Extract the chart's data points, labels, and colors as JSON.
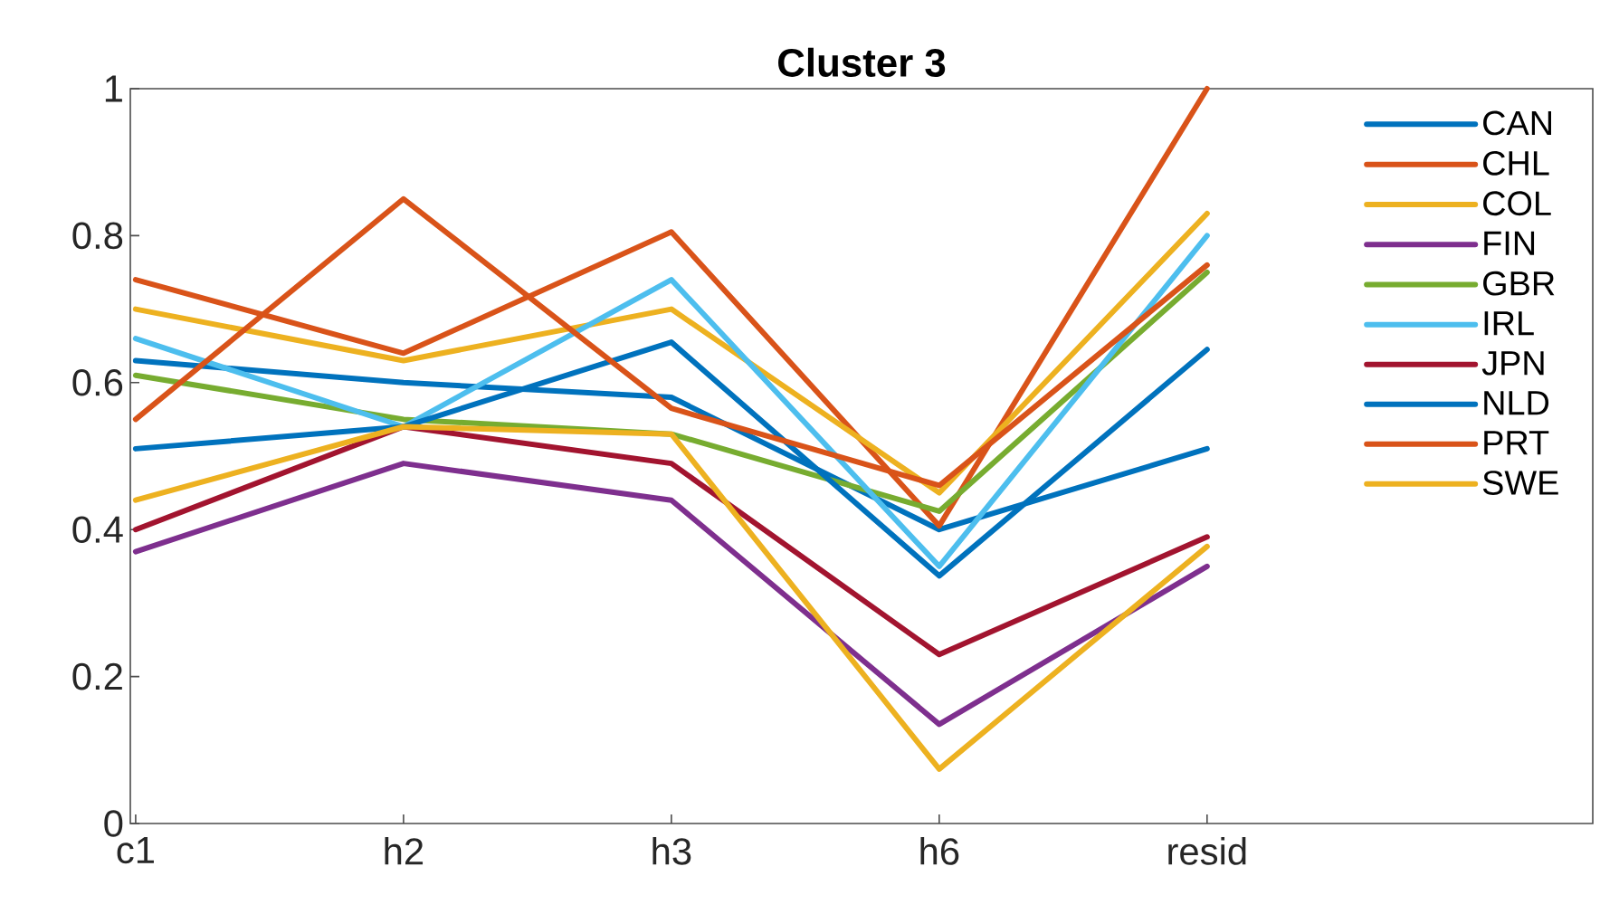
{
  "chart_data": {
    "type": "line",
    "title": "Cluster 3",
    "categories": [
      "c1",
      "h2",
      "h3",
      "h6",
      "resid"
    ],
    "ylim": [
      0,
      1
    ],
    "yticks": [
      0,
      0.2,
      0.4,
      0.6,
      0.8,
      1
    ],
    "grid": false,
    "legend": "top right",
    "marker": "none",
    "line_style": "solid",
    "series": [
      {
        "name": "CAN",
        "color": "#0072bd",
        "values": [
          0.63,
          0.6,
          0.58,
          0.4,
          0.51
        ]
      },
      {
        "name": "CHL",
        "color": "#d95319",
        "values": [
          0.74,
          0.64,
          0.805,
          0.405,
          1.0
        ]
      },
      {
        "name": "COL",
        "color": "#edb120",
        "values": [
          0.7,
          0.63,
          0.7,
          0.45,
          0.83
        ]
      },
      {
        "name": "FIN",
        "color": "#7e2f8e",
        "values": [
          0.37,
          0.49,
          0.44,
          0.135,
          0.35
        ]
      },
      {
        "name": "GBR",
        "color": "#77ac30",
        "values": [
          0.61,
          0.55,
          0.53,
          0.425,
          0.75
        ]
      },
      {
        "name": "IRL",
        "color": "#4dbeee",
        "values": [
          0.66,
          0.54,
          0.74,
          0.35,
          0.8
        ]
      },
      {
        "name": "JPN",
        "color": "#a2142f",
        "values": [
          0.4,
          0.54,
          0.49,
          0.23,
          0.39
        ]
      },
      {
        "name": "NLD",
        "color": "#0072bd",
        "values": [
          0.51,
          0.54,
          0.655,
          0.337,
          0.645
        ]
      },
      {
        "name": "PRT",
        "color": "#d95319",
        "values": [
          0.55,
          0.85,
          0.565,
          0.46,
          0.76
        ]
      },
      {
        "name": "SWE",
        "color": "#edb120",
        "values": [
          0.44,
          0.54,
          0.53,
          0.074,
          0.377
        ]
      }
    ]
  }
}
